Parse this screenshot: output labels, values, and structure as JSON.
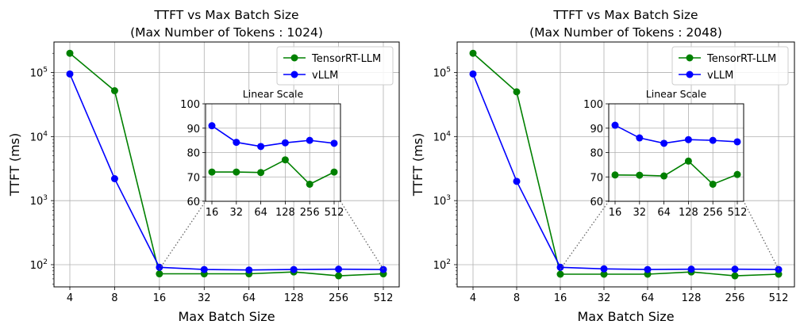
{
  "colors": {
    "tensorrt": "#008000",
    "vllm": "#0000ff",
    "grid": "#b0b0b0",
    "connector": "#666666"
  },
  "chart_data": [
    {
      "type": "line",
      "title_line1": "TTFT vs Max Batch Size",
      "title_line2": "(Max Number of Tokens : 1024)",
      "xlabel": "Max Batch Size",
      "ylabel": "TTFT (ms)",
      "yscale": "log",
      "categories": [
        "4",
        "8",
        "16",
        "32",
        "64",
        "128",
        "256",
        "512"
      ],
      "ylim": [
        45,
        300000
      ],
      "yticks": [
        {
          "value": 100,
          "base": "10",
          "exp": "2"
        },
        {
          "value": 1000,
          "base": "10",
          "exp": "3"
        },
        {
          "value": 10000,
          "base": "10",
          "exp": "4"
        },
        {
          "value": 100000,
          "base": "10",
          "exp": "5"
        }
      ],
      "series": [
        {
          "name": "TensorRT-LLM",
          "color_key": "tensorrt",
          "values": [
            200000,
            52000,
            72,
            72,
            72,
            77,
            67,
            72
          ]
        },
        {
          "name": "vLLM",
          "color_key": "vllm",
          "values": [
            95000,
            2200,
            91,
            84,
            82.5,
            84,
            85,
            84
          ]
        }
      ],
      "legend": [
        "TensorRT-LLM",
        "vLLM"
      ],
      "legend_position": "upper right",
      "inset": {
        "title": "Linear Scale",
        "categories": [
          "16",
          "32",
          "64",
          "128",
          "256",
          "512"
        ],
        "ylim": [
          60,
          100
        ],
        "yticks": [
          "60",
          "70",
          "80",
          "90",
          "100"
        ],
        "series": [
          {
            "name": "TensorRT-LLM",
            "color_key": "tensorrt",
            "values": [
              72,
              72,
              71.8,
              77,
              67,
              72
            ]
          },
          {
            "name": "vLLM",
            "color_key": "vllm",
            "values": [
              91,
              84.2,
              82.5,
              84,
              85,
              83.8
            ]
          }
        ]
      }
    },
    {
      "type": "line",
      "title_line1": "TTFT vs Max Batch Size",
      "title_line2": "(Max Number of Tokens : 2048)",
      "xlabel": "Max Batch Size",
      "ylabel": "TTFT (ms)",
      "yscale": "log",
      "categories": [
        "4",
        "8",
        "16",
        "32",
        "64",
        "128",
        "256",
        "512"
      ],
      "ylim": [
        45,
        300000
      ],
      "yticks": [
        {
          "value": 100,
          "base": "10",
          "exp": "2"
        },
        {
          "value": 1000,
          "base": "10",
          "exp": "3"
        },
        {
          "value": 10000,
          "base": "10",
          "exp": "4"
        },
        {
          "value": 100000,
          "base": "10",
          "exp": "5"
        }
      ],
      "series": [
        {
          "name": "TensorRT-LLM",
          "color_key": "tensorrt",
          "values": [
            200000,
            50000,
            71,
            71,
            71,
            77,
            67,
            71
          ]
        },
        {
          "name": "vLLM",
          "color_key": "vllm",
          "values": [
            95000,
            2000,
            91,
            86,
            84,
            85,
            85,
            84
          ]
        }
      ],
      "legend": [
        "TensorRT-LLM",
        "vLLM"
      ],
      "legend_position": "upper right",
      "inset": {
        "title": "Linear Scale",
        "categories": [
          "16",
          "32",
          "64",
          "128",
          "256",
          "512"
        ],
        "ylim": [
          60,
          100
        ],
        "yticks": [
          "60",
          "70",
          "80",
          "90",
          "100"
        ],
        "series": [
          {
            "name": "TensorRT-LLM",
            "color_key": "tensorrt",
            "values": [
              70.8,
              70.7,
              70.4,
              76.5,
              67,
              71
            ]
          },
          {
            "name": "vLLM",
            "color_key": "vllm",
            "values": [
              91.2,
              86,
              83.8,
              85.3,
              85,
              84.4
            ]
          }
        ]
      }
    }
  ]
}
